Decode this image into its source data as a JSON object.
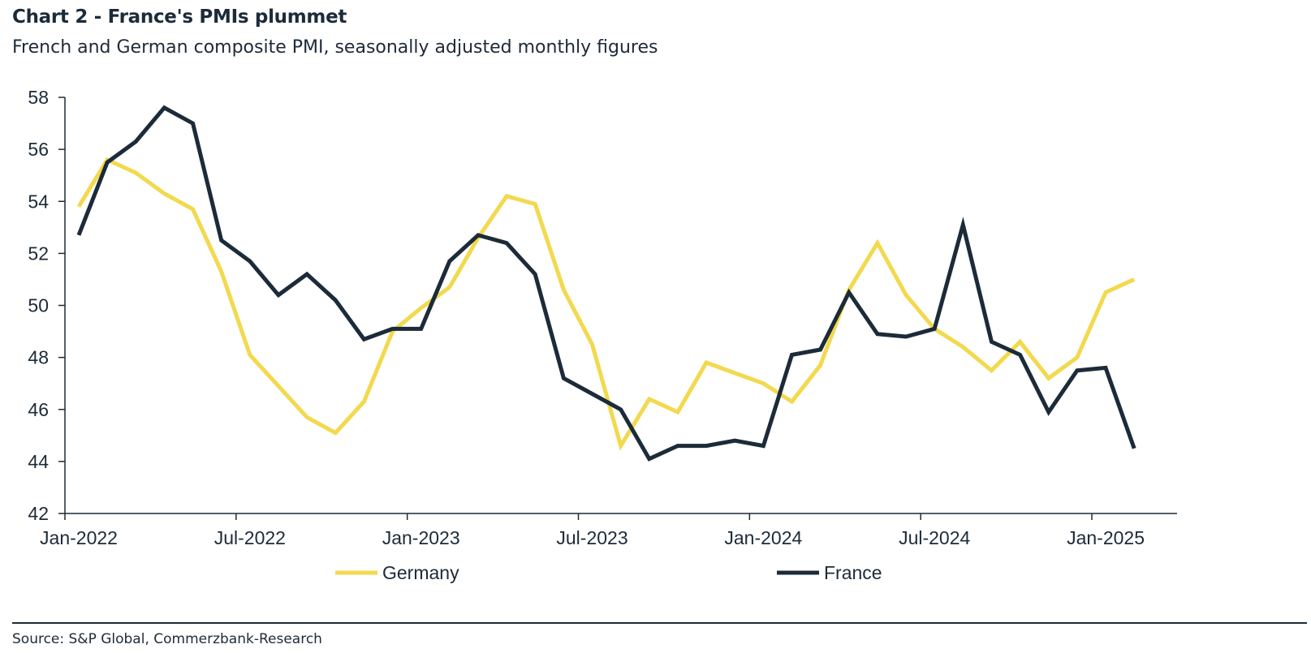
{
  "title": "Chart 2 - France's PMIs plummet",
  "subtitle": "French and German composite PMI, seasonally adjusted monthly figures",
  "source": "Source: S&P Global, Commerzbank-Research",
  "chart_data": {
    "type": "line",
    "title": "Chart 2 - France's PMIs plummet",
    "subtitle": "French and German composite PMI, seasonally adjusted monthly figures",
    "xlabel": "",
    "ylabel": "",
    "ylim": [
      42,
      58
    ],
    "yticks": [
      "42",
      "44",
      "46",
      "48",
      "50",
      "52",
      "54",
      "56",
      "58"
    ],
    "xticks": [
      "Jan-2022",
      "Jul-2022",
      "Jan-2023",
      "Jul-2023",
      "Jan-2024",
      "Jul-2024",
      "Jan-2025"
    ],
    "x": [
      "2022-01",
      "2022-02",
      "2022-03",
      "2022-04",
      "2022-05",
      "2022-06",
      "2022-07",
      "2022-08",
      "2022-09",
      "2022-10",
      "2022-11",
      "2022-12",
      "2023-01",
      "2023-02",
      "2023-03",
      "2023-04",
      "2023-05",
      "2023-06",
      "2023-07",
      "2023-08",
      "2023-09",
      "2023-10",
      "2023-11",
      "2023-12",
      "2024-01",
      "2024-02",
      "2024-03",
      "2024-04",
      "2024-05",
      "2024-06",
      "2024-07",
      "2024-08",
      "2024-09",
      "2024-10",
      "2024-11",
      "2024-12",
      "2025-01",
      "2025-02"
    ],
    "grid": false,
    "legend_position": "bottom",
    "series": [
      {
        "name": "Germany",
        "color": "#f2d94e",
        "values": [
          53.8,
          55.6,
          55.1,
          54.3,
          53.7,
          51.3,
          48.1,
          46.9,
          45.7,
          45.1,
          46.3,
          49.0,
          49.9,
          50.7,
          52.6,
          54.2,
          53.9,
          50.6,
          48.5,
          44.6,
          46.4,
          45.9,
          47.8,
          47.4,
          47.0,
          46.3,
          47.7,
          50.6,
          52.4,
          50.4,
          49.1,
          48.4,
          47.5,
          48.6,
          47.2,
          48.0,
          50.5,
          51.0
        ]
      },
      {
        "name": "France",
        "color": "#1c2b39",
        "values": [
          52.7,
          55.5,
          56.3,
          57.6,
          57.0,
          52.5,
          51.7,
          50.4,
          51.2,
          50.2,
          48.7,
          49.1,
          49.1,
          51.7,
          52.7,
          52.4,
          51.2,
          47.2,
          46.6,
          46.0,
          44.1,
          44.6,
          44.6,
          44.8,
          44.6,
          48.1,
          48.3,
          50.5,
          48.9,
          48.8,
          49.1,
          53.1,
          48.6,
          48.1,
          45.9,
          47.5,
          47.6,
          44.5
        ]
      }
    ]
  }
}
